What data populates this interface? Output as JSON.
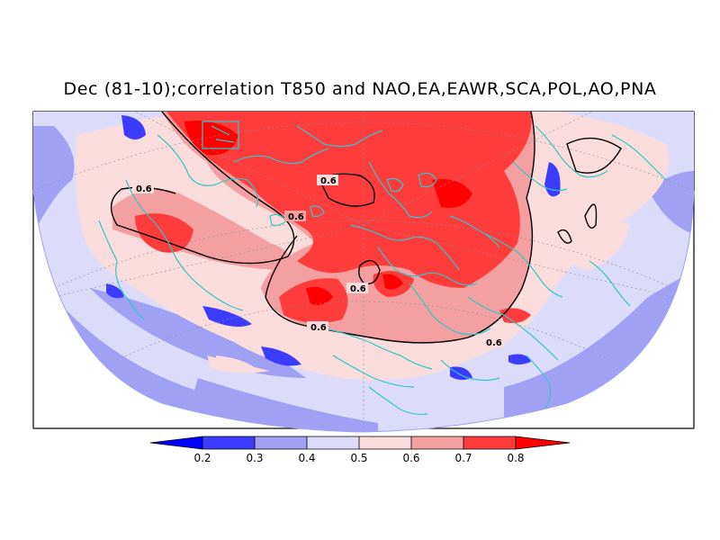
{
  "title": "Dec (81-10);correlation T850 and NAO,EA,EAWR,SCA,POL,AO,PNA",
  "contour_label": "0.6",
  "colorbar": {
    "ticks": [
      "0.2",
      "0.3",
      "0.4",
      "0.5",
      "0.6",
      "0.7",
      "0.8"
    ],
    "colors": [
      "#0000ff",
      "#3c3cff",
      "#a0a0f5",
      "#dcdcfa",
      "#fadcdc",
      "#f5a0a0",
      "#ff3c3c",
      "#ff0000"
    ]
  },
  "colors": {
    "coastline": "#30c8c8",
    "ocean_base": "#dcdcfa",
    "frame": "#000000"
  }
}
